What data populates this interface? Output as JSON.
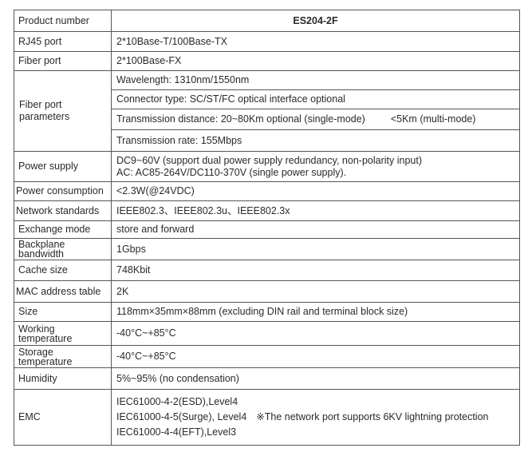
{
  "table": {
    "header": {
      "label": "Product number",
      "value": "ES204-2F"
    },
    "rj45": {
      "label": "RJ45 port",
      "value": "2*10Base-T/100Base-TX"
    },
    "fiber_port": {
      "label": "Fiber port",
      "value": "2*100Base-FX"
    },
    "fiber_params": {
      "label": "Fiber port parameters",
      "wavelength": "Wavelength: 1310nm/1550nm",
      "connector": "Connector type: SC/ST/FC optical interface optional",
      "distance_single": "Transmission distance: 20~80Km optional (single-mode)",
      "distance_multi": "<5Km (multi-mode)",
      "rate": "Transmission rate: 155Mbps"
    },
    "power_supply": {
      "label": "Power supply",
      "line1": "DC9~60V (support dual power supply redundancy, non-polarity input)",
      "line2": "AC: AC85-264V/DC110-370V (single power supply)."
    },
    "power_consumption": {
      "label": "Power consumption",
      "value": "<2.3W(@24VDC)"
    },
    "network_standards": {
      "label": "Network standards",
      "value": "IEEE802.3、IEEE802.3u、IEEE802.3x"
    },
    "exchange_mode": {
      "label": "Exchange mode",
      "value": "store and forward"
    },
    "backplane": {
      "label": "Backplane bandwidth",
      "value": "1Gbps"
    },
    "cache": {
      "label": "Cache size",
      "value": "748Kbit"
    },
    "mac": {
      "label": "MAC address table",
      "value": "2K"
    },
    "size": {
      "label": "Size",
      "value": "118mm×35mm×88mm (excluding DIN rail and terminal block size)"
    },
    "working_temp": {
      "label": "Working temperature",
      "value": "-40°C~+85°C"
    },
    "storage_temp": {
      "label": "Storage temperature",
      "value": "-40°C~+85°C"
    },
    "humidity": {
      "label": "Humidity",
      "value": "5%~95% (no condensation)"
    },
    "emc": {
      "label": "EMC",
      "line1": "IEC61000-4-2(ESD),Level4",
      "line2": "IEC61000-4-5(Surge), Level4",
      "line2_note": "※The network port supports 6KV lightning protection",
      "line3": "IEC61000-4-4(EFT),Level3"
    }
  }
}
